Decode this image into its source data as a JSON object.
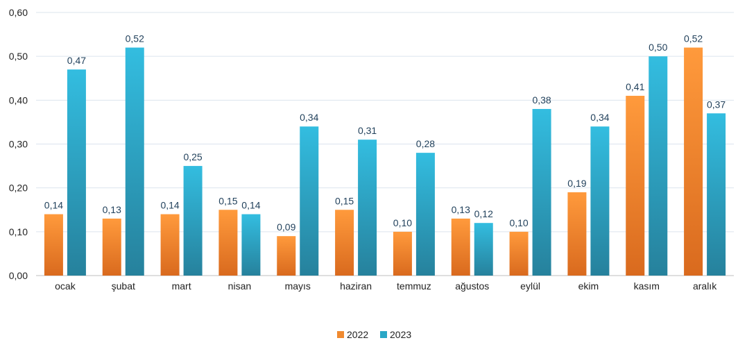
{
  "chart_data": {
    "type": "bar",
    "categories": [
      "ocak",
      "şubat",
      "mart",
      "nisan",
      "mayıs",
      "haziran",
      "temmuz",
      "ağustos",
      "eylül",
      "ekim",
      "kasım",
      "aralık"
    ],
    "series": [
      {
        "name": "2022",
        "color": "#f08a30",
        "values": [
          0.14,
          0.13,
          0.14,
          0.15,
          0.09,
          0.15,
          0.1,
          0.13,
          0.1,
          0.19,
          0.41,
          0.52
        ],
        "labels": [
          "0,14",
          "0,13",
          "0,14",
          "0,15",
          "0,09",
          "0,15",
          "0,10",
          "0,13",
          "0,10",
          "0,19",
          "0,41",
          "0,52"
        ]
      },
      {
        "name": "2023",
        "color": "#2aa7c6",
        "values": [
          0.47,
          0.52,
          0.25,
          0.14,
          0.34,
          0.31,
          0.28,
          0.12,
          0.38,
          0.34,
          0.5,
          0.37
        ],
        "labels": [
          "0,47",
          "0,52",
          "0,25",
          "0,14",
          "0,34",
          "0,31",
          "0,28",
          "0,12",
          "0,38",
          "0,34",
          "0,50",
          "0,37"
        ]
      }
    ],
    "ylim": [
      0,
      0.6
    ],
    "yticks": [
      "0,00",
      "0,10",
      "0,20",
      "0,30",
      "0,40",
      "0,50",
      "0,60"
    ],
    "grid": true,
    "legend_position": "bottom-center",
    "title": "",
    "xlabel": "",
    "ylabel": ""
  }
}
